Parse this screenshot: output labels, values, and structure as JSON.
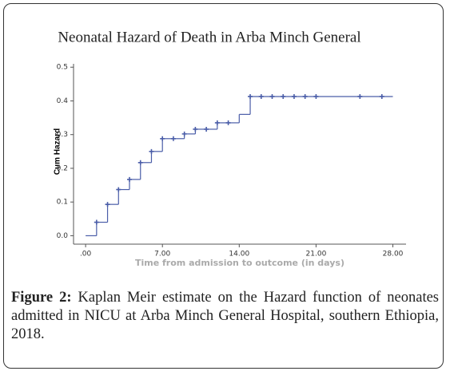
{
  "chart_data": {
    "type": "step",
    "title": "Neonatal Hazard of Death in Arba Minch General",
    "x_label": "Time from admission to outcome (in days)",
    "y_label": "Cum Hazard",
    "color": "#4a5da8",
    "x": [
      0,
      1,
      2,
      3,
      4,
      5,
      6,
      7,
      8,
      9,
      10,
      11,
      12,
      13,
      14,
      15,
      28
    ],
    "values": [
      0,
      0.04,
      0.093,
      0.137,
      0.167,
      0.217,
      0.25,
      0.288,
      0.288,
      0.302,
      0.316,
      0.316,
      0.335,
      0.335,
      0.36,
      0.413,
      0.413
    ],
    "censored": {
      "x": [
        1,
        2,
        3,
        4,
        5,
        6,
        7,
        8,
        9,
        10,
        11,
        12,
        13,
        15,
        16,
        17,
        18,
        19,
        20,
        21,
        25,
        27
      ],
      "values": [
        0.04,
        0.093,
        0.137,
        0.167,
        0.217,
        0.25,
        0.288,
        0.288,
        0.302,
        0.316,
        0.316,
        0.335,
        0.335,
        0.413,
        0.413,
        0.413,
        0.413,
        0.413,
        0.413,
        0.413,
        0.413,
        0.413
      ]
    },
    "xlim": [
      -1.1,
      29.2
    ],
    "ylim": [
      -0.025,
      0.51
    ],
    "xticks": [
      {
        "value": 0,
        "label": ".00"
      },
      {
        "value": 7,
        "label": "7.00"
      },
      {
        "value": 14,
        "label": "14.00"
      },
      {
        "value": 21,
        "label": "21.00"
      },
      {
        "value": 28,
        "label": "28.00"
      }
    ],
    "yticks": [
      {
        "value": 0,
        "label": "0.0"
      },
      0.1,
      0.2,
      0.3,
      0.4,
      0.5
    ]
  },
  "caption": {
    "label": "Figure 2:",
    "text": "Kaplan Meir estimate on the Hazard function of neonates admitted in NICU at Arba Minch General Hospital, southern Ethiopia, 2018."
  }
}
